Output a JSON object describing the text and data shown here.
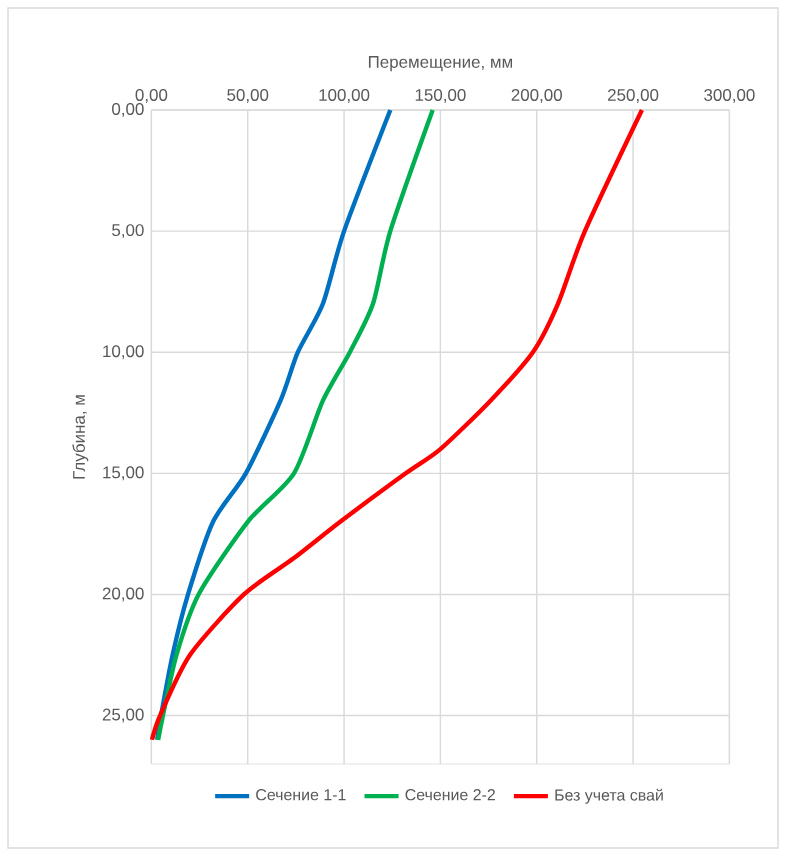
{
  "chart_data": {
    "type": "line",
    "xlabel": "Перемещение, мм",
    "ylabel": "Глубина, м",
    "xlim": [
      0,
      300
    ],
    "ylim": [
      27,
      0
    ],
    "xticks": [
      {
        "value": 0,
        "label": "0,00"
      },
      {
        "value": 50,
        "label": "50,00"
      },
      {
        "value": 100,
        "label": "100,00"
      },
      {
        "value": 150,
        "label": "150,00"
      },
      {
        "value": 200,
        "label": "200,00"
      },
      {
        "value": 250,
        "label": "250,00"
      },
      {
        "value": 300,
        "label": "300,00"
      }
    ],
    "yticks": [
      {
        "value": 0,
        "label": "0,00"
      },
      {
        "value": 5,
        "label": "5,00"
      },
      {
        "value": 10,
        "label": "10,00"
      },
      {
        "value": 15,
        "label": "15,00"
      },
      {
        "value": 20,
        "label": "20,00"
      },
      {
        "value": 25,
        "label": "25,00"
      }
    ],
    "grid": true,
    "legend": "bottom",
    "marker": "none",
    "line_style": "solid",
    "series": [
      {
        "name": "Сечение 1-1",
        "color": "#0070c0",
        "x": [
          124,
          100,
          89,
          76,
          67,
          49,
          32,
          19,
          11,
          5,
          3
        ],
        "values": [
          0,
          5,
          8,
          10,
          12,
          15,
          17,
          20,
          22.5,
          25,
          26
        ]
      },
      {
        "name": "Сечение 2-2",
        "color": "#00b050",
        "x": [
          146,
          124,
          115,
          103,
          89,
          74,
          50,
          24.5,
          13,
          6,
          3.5
        ],
        "values": [
          0,
          5,
          8,
          10,
          12,
          15,
          17,
          20,
          22.5,
          25,
          26
        ]
      },
      {
        "name": "Без учета свай",
        "color": "#ff0000",
        "x": [
          254.6,
          225,
          211,
          198,
          176,
          150,
          132,
          98,
          74,
          48,
          20,
          4.5,
          0.3
        ],
        "values": [
          0,
          5,
          8,
          10,
          12,
          14,
          15,
          17,
          18.5,
          20,
          22.5,
          25,
          26
        ]
      }
    ]
  }
}
